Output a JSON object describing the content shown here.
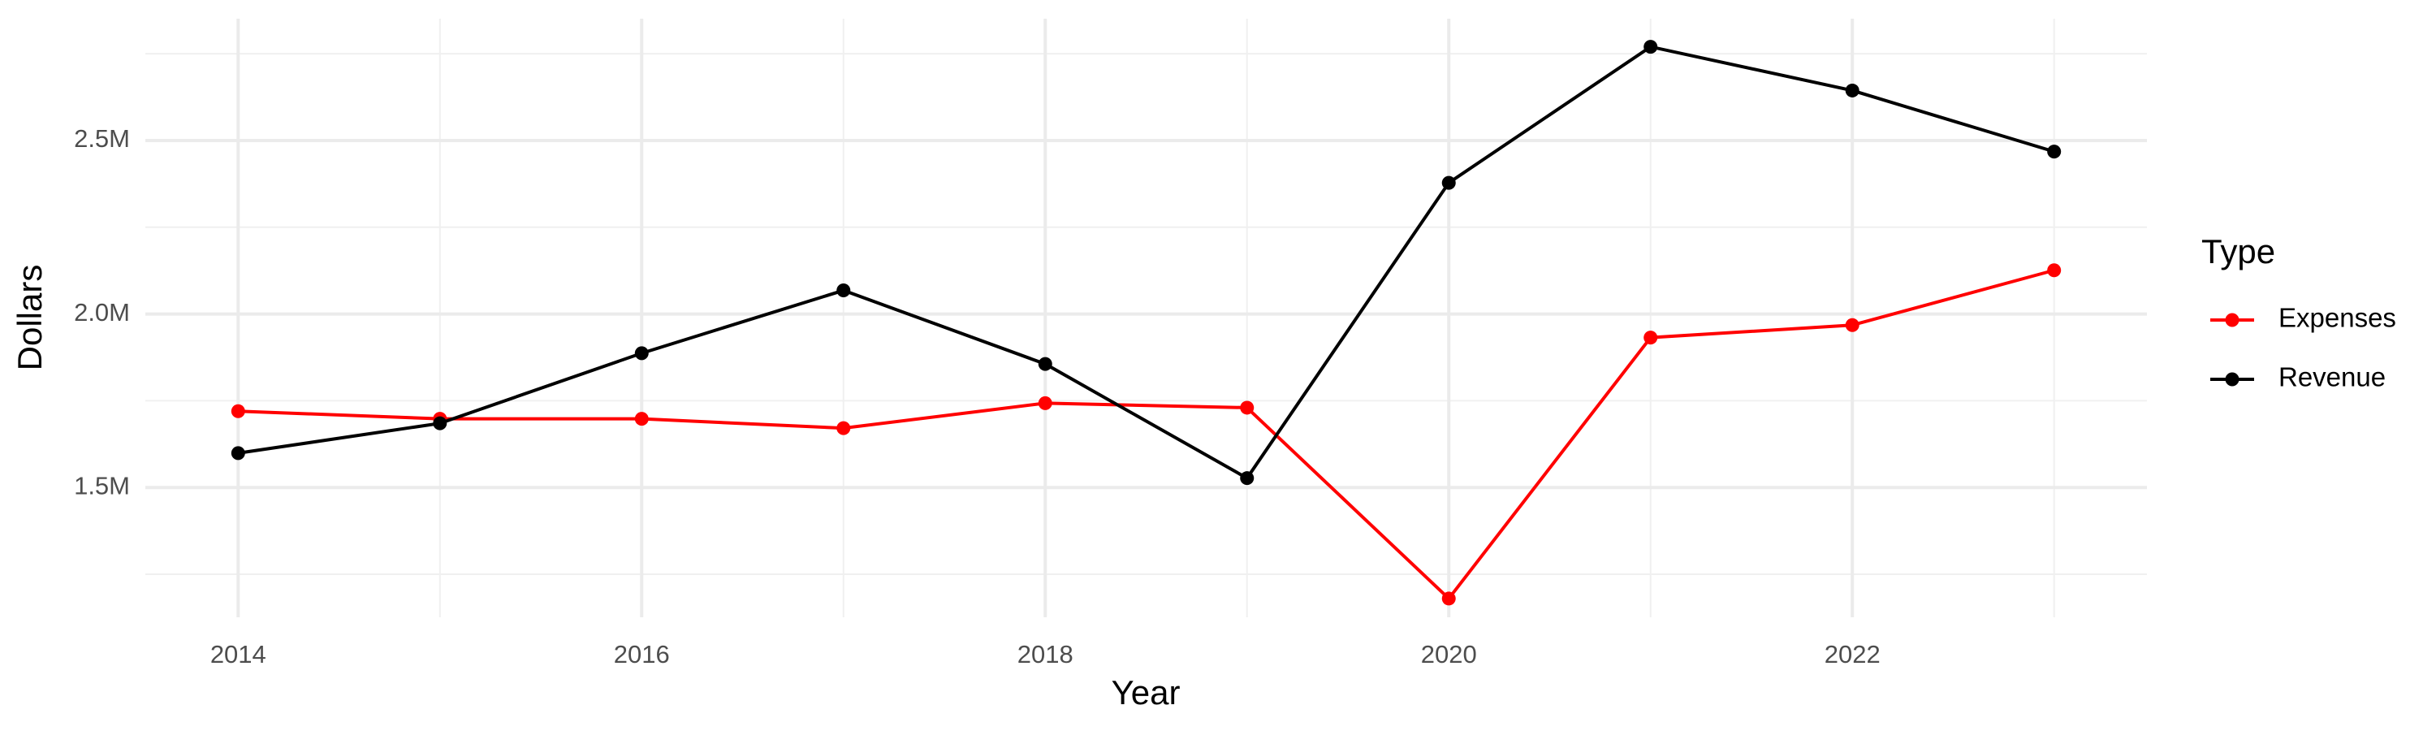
{
  "chart_data": {
    "type": "line",
    "x_label": "Year",
    "y_label": "Dollars",
    "x": [
      2014,
      2015,
      2016,
      2017,
      2018,
      2019,
      2020,
      2021,
      2022,
      2023
    ],
    "series": [
      {
        "name": "Expenses",
        "color": "#ff0000",
        "values": [
          1720000,
          1698000,
          1698000,
          1671000,
          1743000,
          1730000,
          1180000,
          1932000,
          1968000,
          2126000
        ]
      },
      {
        "name": "Revenue",
        "color": "#000000",
        "values": [
          1599000,
          1685000,
          1887000,
          2068000,
          1856000,
          1527000,
          2378000,
          2770000,
          2644000,
          2468000
        ]
      }
    ],
    "xlim": [
      2013.54,
      2023.46
    ],
    "xticks": [
      2014,
      2016,
      2018,
      2020,
      2022
    ],
    "xminorticks": [
      2015,
      2017,
      2019,
      2021,
      2023
    ],
    "ylim": [
      1126000,
      2851000
    ],
    "yticks": [
      {
        "value": 1500000,
        "label": "1.5M"
      },
      {
        "value": 2000000,
        "label": "2.0M"
      },
      {
        "value": 2500000,
        "label": "2.5M"
      }
    ],
    "yminorticks": [
      1250000,
      1750000,
      2250000,
      2750000
    ],
    "grid": true,
    "legend_title": "Type",
    "legend_position": "right"
  }
}
